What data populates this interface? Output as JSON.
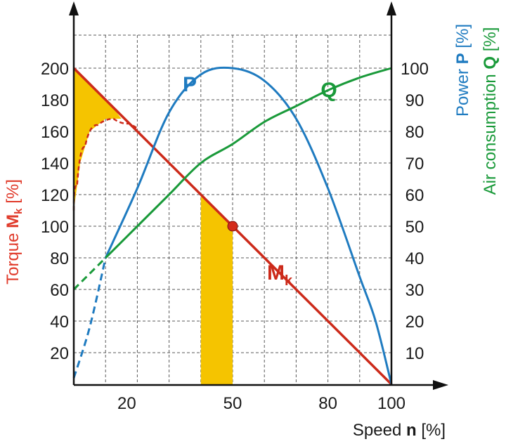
{
  "chart_data": {
    "type": "line",
    "x_axis": {
      "label_prefix": "Speed ",
      "label_bold": "n",
      "label_suffix": " [%]",
      "range": [
        0,
        100
      ],
      "ticks": [
        20,
        50,
        80,
        100
      ],
      "grid_step": 10
    },
    "y_left": {
      "label_prefix": "Torque ",
      "label_bold": "M",
      "label_sub": "k",
      "label_suffix": " [%]",
      "range": [
        0,
        200
      ],
      "ticks": [
        20,
        40,
        60,
        80,
        100,
        120,
        140,
        160,
        180,
        200
      ],
      "color": "#e03a2a"
    },
    "y_right_inner": {
      "label_prefix": "Power ",
      "label_bold": "P",
      "label_suffix": " [%]",
      "range": [
        0,
        100
      ],
      "ticks": [
        10,
        20,
        30,
        40,
        50,
        60,
        70,
        80,
        90,
        100
      ],
      "color": "#1f7bc0"
    },
    "y_right_outer": {
      "label_prefix": "Air consumption ",
      "label_bold": "Q",
      "label_suffix": " [%]",
      "color": "#1a9a3a"
    },
    "grid": true,
    "series": [
      {
        "name": "M",
        "name_sub": "k",
        "axis": "left",
        "color": "#cc2a1a",
        "points": [
          [
            0,
            200
          ],
          [
            100,
            0
          ]
        ]
      },
      {
        "name": "P",
        "axis": "right",
        "color": "#1f7bc0",
        "points": [
          [
            0,
            2
          ],
          [
            5,
            18
          ],
          [
            10,
            40
          ],
          [
            20,
            62
          ],
          [
            30,
            86
          ],
          [
            40,
            98
          ],
          [
            50,
            100
          ],
          [
            60,
            96
          ],
          [
            70,
            84
          ],
          [
            80,
            62
          ],
          [
            90,
            34
          ],
          [
            95,
            20
          ],
          [
            100,
            0
          ]
        ],
        "dashed_until": 10
      },
      {
        "name": "Q",
        "axis": "right",
        "color": "#1a9a3a",
        "points": [
          [
            0,
            30
          ],
          [
            10,
            40
          ],
          [
            20,
            50
          ],
          [
            30,
            60
          ],
          [
            40,
            70
          ],
          [
            50,
            76
          ],
          [
            60,
            83
          ],
          [
            70,
            88
          ],
          [
            80,
            93
          ],
          [
            90,
            97
          ],
          [
            100,
            100
          ]
        ],
        "dashed_until": 10
      }
    ],
    "operating_point": {
      "x": 50,
      "y": 100
    },
    "highlight_band": {
      "x0": 40,
      "x1": 50
    },
    "starting_torque_zone": {
      "upper": [
        [
          0,
          200
        ],
        [
          5,
          190
        ],
        [
          10,
          180
        ]
      ],
      "lower": [
        [
          0,
          110
        ],
        [
          2,
          140
        ],
        [
          5,
          160
        ],
        [
          10,
          168
        ],
        [
          15,
          168
        ],
        [
          20,
          162
        ]
      ]
    }
  },
  "colors": {
    "highlight": "#f5c400",
    "grid": "#5a5a5a",
    "axis": "#111111",
    "dot": "#d42a1a"
  }
}
